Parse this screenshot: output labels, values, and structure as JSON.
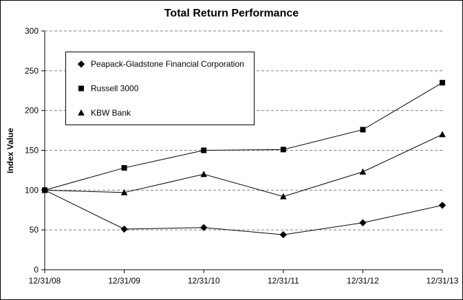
{
  "title": "Total Return Performance",
  "chart_data": {
    "type": "line",
    "title": "Total Return Performance",
    "xlabel": "",
    "ylabel": "Index Value",
    "x": [
      "12/31/08",
      "12/31/09",
      "12/31/10",
      "12/31/11",
      "12/31/12",
      "12/31/13"
    ],
    "series": [
      {
        "name": "Peapack-Gladstone Financial Corporation",
        "marker": "diamond",
        "values": [
          100,
          51,
          53,
          44,
          59,
          81
        ]
      },
      {
        "name": "Russell 3000",
        "marker": "square",
        "values": [
          100,
          128,
          150,
          151,
          176,
          235
        ]
      },
      {
        "name": "KBW Bank",
        "marker": "triangle",
        "values": [
          100,
          97,
          120,
          92,
          123,
          170
        ]
      }
    ],
    "ylim": [
      0,
      300
    ],
    "ytick_step": 50,
    "grid": "dashed-horizontal",
    "legend_position": "upper-left",
    "line_color": "#000000",
    "marker_color": "#000000",
    "grid_color": "#808080"
  }
}
